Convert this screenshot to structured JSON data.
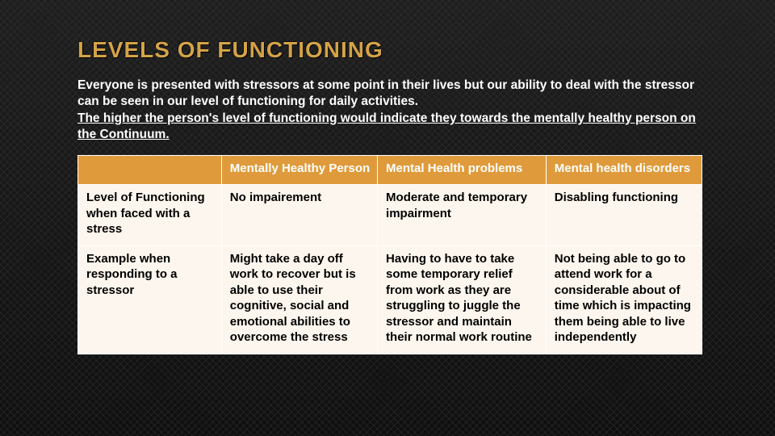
{
  "colors": {
    "background": "#1a1a1a",
    "title": "#d4a348",
    "body_text": "#ffffff",
    "table_header_bg": "#df9b3b",
    "table_header_text": "#ffffff",
    "table_body_bg": "#fdf6ee",
    "table_body_text": "#000000",
    "table_border": "#ffffff"
  },
  "typography": {
    "title_fontsize": 28,
    "title_weight": 900,
    "body_fontsize": 15.5,
    "table_fontsize": 15,
    "cell_weight": 700
  },
  "title": "LEVELS OF FUNCTIONING",
  "intro_line1": "Everyone is presented with stressors at some point in their lives but our ability to deal with the stressor can be seen in our level of functioning for daily activities.",
  "intro_line2": "The higher the person's level of functioning would indicate they towards the mentally healthy person on the Continuum.",
  "table": {
    "type": "table",
    "column_widths_pct": [
      23,
      25,
      27,
      25
    ],
    "columns": [
      "",
      "Mentally Healthy Person",
      "Mental Health problems",
      "Mental health disorders"
    ],
    "rows": [
      [
        "Level of Functioning when faced with a stress",
        "No impairement",
        "Moderate and temporary impairment",
        "Disabling functioning"
      ],
      [
        "Example when responding to a stressor",
        "Might take a day off work to recover but is able to use their cognitive, social and emotional abilities to overcome the stress",
        "Having to have to take some temporary relief from work as they are struggling to juggle the stressor and maintain their normal work routine",
        "Not being able to go to attend work for a considerable about of time which is impacting them being able to live independently"
      ]
    ]
  }
}
